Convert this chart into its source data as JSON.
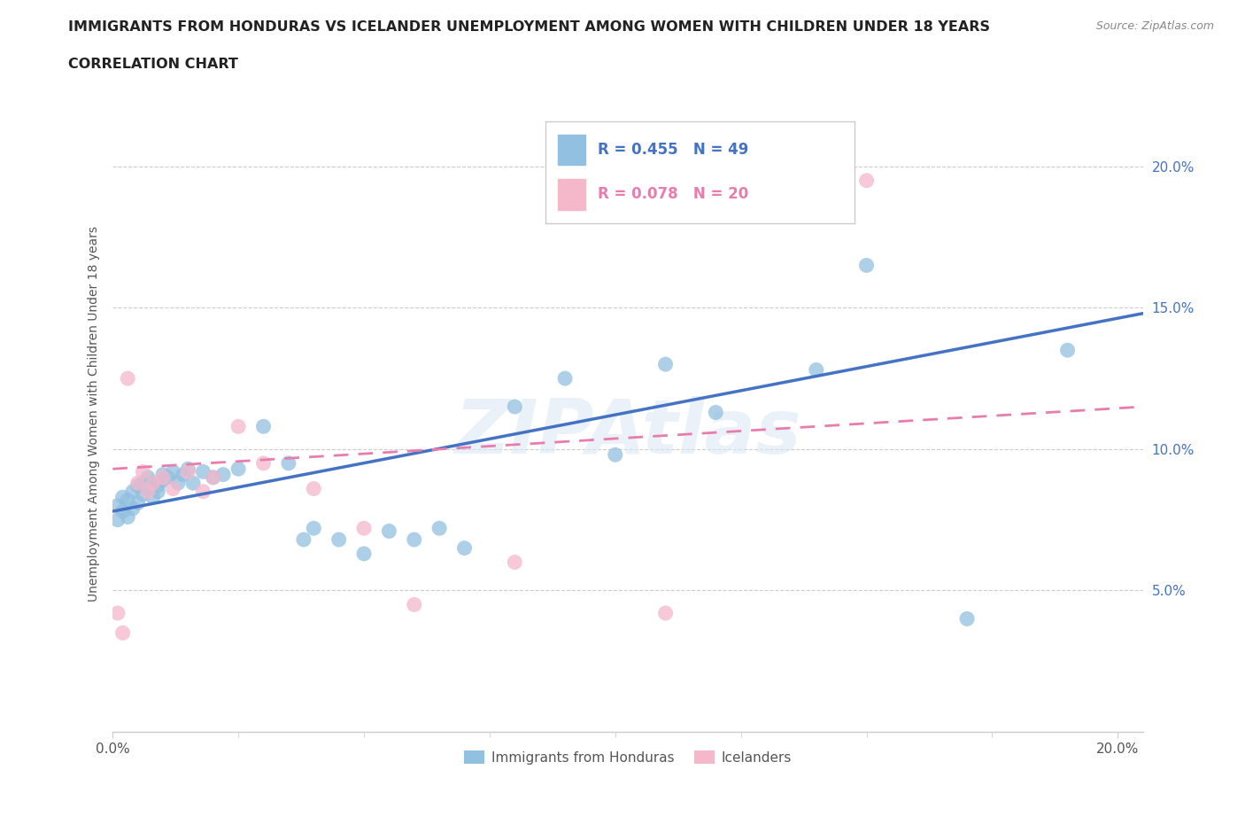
{
  "title_line1": "IMMIGRANTS FROM HONDURAS VS ICELANDER UNEMPLOYMENT AMONG WOMEN WITH CHILDREN UNDER 18 YEARS",
  "title_line2": "CORRELATION CHART",
  "source_text": "Source: ZipAtlas.com",
  "ylabel": "Unemployment Among Women with Children Under 18 years",
  "xlim": [
    0.0,
    0.205
  ],
  "ylim": [
    0.0,
    0.225
  ],
  "yticks": [
    0.05,
    0.1,
    0.15,
    0.2
  ],
  "ytick_labels": [
    "5.0%",
    "10.0%",
    "15.0%",
    "20.0%"
  ],
  "xtick_left_label": "0.0%",
  "xtick_right_label": "20.0%",
  "honduras_R": 0.455,
  "honduras_N": 49,
  "icelander_R": 0.078,
  "icelander_N": 20,
  "blue_color": "#92c0e0",
  "pink_color": "#f5b8cb",
  "blue_line_color": "#4472c4",
  "pink_line_color": "#e87dad",
  "watermark": "ZIPAtlas",
  "honduras_x": [
    0.001,
    0.001,
    0.002,
    0.002,
    0.003,
    0.003,
    0.004,
    0.004,
    0.005,
    0.005,
    0.006,
    0.006,
    0.007,
    0.007,
    0.008,
    0.008,
    0.009,
    0.009,
    0.01,
    0.01,
    0.011,
    0.012,
    0.013,
    0.014,
    0.015,
    0.016,
    0.018,
    0.02,
    0.022,
    0.025,
    0.03,
    0.035,
    0.038,
    0.04,
    0.045,
    0.05,
    0.055,
    0.06,
    0.065,
    0.07,
    0.08,
    0.09,
    0.1,
    0.11,
    0.12,
    0.14,
    0.15,
    0.17,
    0.19
  ],
  "honduras_y": [
    0.08,
    0.075,
    0.083,
    0.078,
    0.082,
    0.076,
    0.085,
    0.079,
    0.087,
    0.081,
    0.088,
    0.084,
    0.086,
    0.09,
    0.088,
    0.083,
    0.087,
    0.085,
    0.089,
    0.091,
    0.09,
    0.092,
    0.088,
    0.091,
    0.093,
    0.088,
    0.092,
    0.09,
    0.091,
    0.093,
    0.108,
    0.095,
    0.068,
    0.072,
    0.068,
    0.063,
    0.071,
    0.068,
    0.072,
    0.065,
    0.115,
    0.125,
    0.098,
    0.13,
    0.113,
    0.128,
    0.165,
    0.04,
    0.135
  ],
  "icelander_x": [
    0.001,
    0.002,
    0.003,
    0.005,
    0.006,
    0.007,
    0.008,
    0.01,
    0.012,
    0.015,
    0.018,
    0.02,
    0.025,
    0.03,
    0.04,
    0.05,
    0.06,
    0.08,
    0.11,
    0.15
  ],
  "icelander_y": [
    0.042,
    0.035,
    0.125,
    0.088,
    0.092,
    0.085,
    0.088,
    0.09,
    0.086,
    0.092,
    0.085,
    0.09,
    0.108,
    0.095,
    0.086,
    0.072,
    0.045,
    0.06,
    0.042,
    0.195
  ],
  "blue_line_x0": 0.0,
  "blue_line_y0": 0.078,
  "blue_line_x1": 0.205,
  "blue_line_y1": 0.148,
  "pink_line_x0": 0.0,
  "pink_line_y0": 0.093,
  "pink_line_x1": 0.205,
  "pink_line_y1": 0.115
}
